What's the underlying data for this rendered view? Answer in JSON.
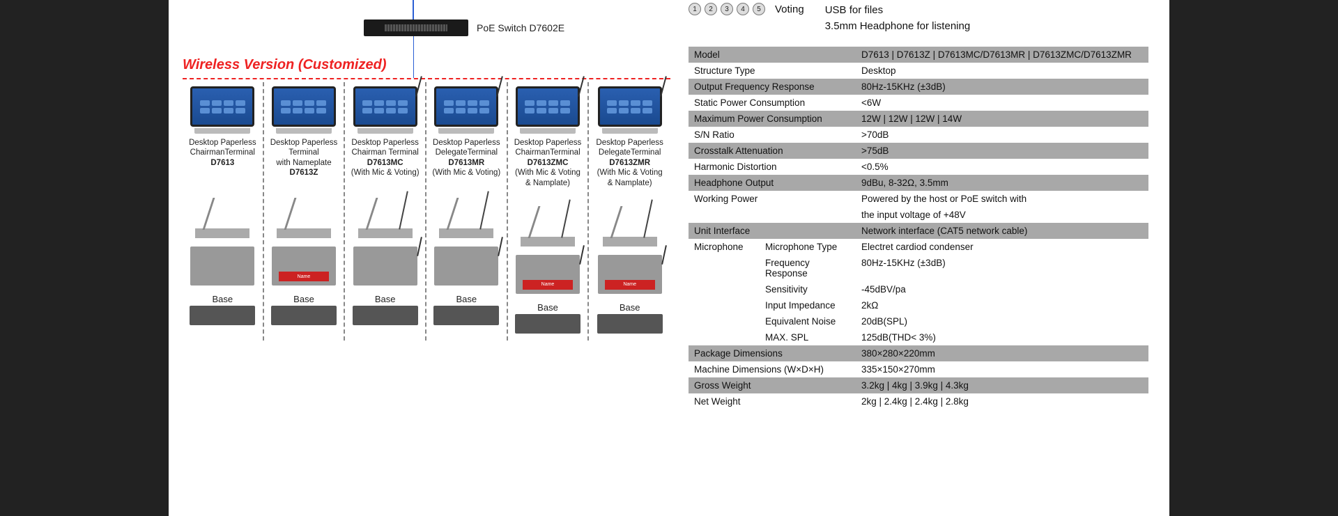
{
  "switch": {
    "label": "PoE Switch D7602E"
  },
  "section_title": "Wireless Version (Customized)",
  "products": [
    {
      "l1": "Desktop Paperless",
      "l2": "ChairmanTerminal",
      "model": "D7613",
      "extra": "",
      "mic": false,
      "nameplate": false
    },
    {
      "l1": "Desktop Paperless",
      "l2": "Terminal",
      "l3": "with Nameplate",
      "model": "D7613Z",
      "extra": "",
      "mic": false,
      "nameplate": true
    },
    {
      "l1": "Desktop Paperless",
      "l2": "Chairman Terminal",
      "model": "D7613MC",
      "extra": "(With Mic & Voting)",
      "mic": true,
      "nameplate": false
    },
    {
      "l1": "Desktop Paperless",
      "l2": "DelegateTerminal",
      "model": "D7613MR",
      "extra": "(With Mic & Voting)",
      "mic": true,
      "nameplate": false
    },
    {
      "l1": "Desktop Paperless",
      "l2": "ChairmanTerminal",
      "model": "D7613ZMC",
      "extra": "(With Mic & Voting",
      "extra2": "& Namplate)",
      "mic": true,
      "nameplate": true
    },
    {
      "l1": "Desktop Paperless",
      "l2": "DelegateTerminal",
      "model": "D7613ZMR",
      "extra": "(With Mic & Voting",
      "extra2": "& Namplate)",
      "mic": true,
      "nameplate": true
    }
  ],
  "base_label": "Base",
  "nameplate_text": "Name",
  "top_features": {
    "voting": "Voting",
    "r1": "USB for files",
    "r2": "3.5mm Headphone for listening"
  },
  "spec_rows": [
    {
      "shade": true,
      "k": "Model",
      "v": "D7613 | D7613Z | D7613MC/D7613MR | D7613ZMC/D7613ZMR"
    },
    {
      "shade": false,
      "k": "Structure Type",
      "v": "Desktop"
    },
    {
      "shade": true,
      "k": "Output Frequency Response",
      "v": "80Hz-15KHz (±3dB)"
    },
    {
      "shade": false,
      "k": "Static Power Consumption",
      "v": "<6W"
    },
    {
      "shade": true,
      "k": "Maximum Power Consumption",
      "v": "12W | 12W | 12W | 14W"
    },
    {
      "shade": false,
      "k": "S/N Ratio",
      "v": ">70dB"
    },
    {
      "shade": true,
      "k": "Crosstalk Attenuation",
      "v": ">75dB"
    },
    {
      "shade": false,
      "k": "Harmonic Distortion",
      "v": "<0.5%"
    },
    {
      "shade": true,
      "k": "Headphone Output",
      "v": "9dBu, 8-32Ω, 3.5mm"
    },
    {
      "shade": false,
      "k": "Working Power",
      "v": "Powered by the host or PoE switch with"
    },
    {
      "shade": false,
      "k": "",
      "v": "the input voltage of +48V"
    },
    {
      "shade": true,
      "k": "Unit Interface",
      "v": "Network interface (CAT5 network cable)"
    }
  ],
  "mic_group_label": "Microphone",
  "mic_rows": [
    {
      "shade": false,
      "k": "Microphone Type",
      "v": "Electret cardiod condenser"
    },
    {
      "shade": false,
      "k": "Frequency Response",
      "v": "80Hz-15KHz (±3dB)"
    },
    {
      "shade": false,
      "k": "Sensitivity",
      "v": "-45dBV/pa"
    },
    {
      "shade": false,
      "k": "Input Impedance",
      "v": "2kΩ"
    },
    {
      "shade": false,
      "k": "Equivalent Noise",
      "v": "20dB(SPL)"
    },
    {
      "shade": false,
      "k": "MAX. SPL",
      "v": "125dB(THD< 3%)"
    }
  ],
  "spec_rows2": [
    {
      "shade": true,
      "k": "Package Dimensions",
      "v": "380×280×220mm"
    },
    {
      "shade": false,
      "k": "Machine Dimensions (W×D×H)",
      "v": "335×150×270mm"
    },
    {
      "shade": true,
      "k": "Gross Weight",
      "v": "3.2kg | 4kg | 3.9kg | 4.3kg"
    },
    {
      "shade": false,
      "k": "Net Weight",
      "v": "2kg | 2.4kg | 2.4kg | 2.8kg"
    }
  ]
}
